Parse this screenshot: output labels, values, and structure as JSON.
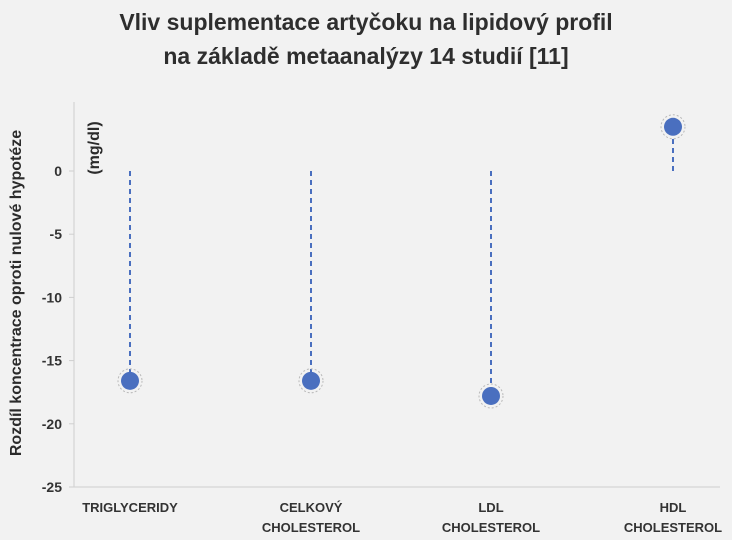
{
  "chart_data": {
    "type": "scatter",
    "title_lines": [
      "Vliv suplementace artyčoku na lipidový profil",
      "na základě metaanalýzy 14 studií [11]"
    ],
    "ylabel": "Rozdíl koncentrace oproti nulové hypotéze",
    "unit": "(mg/dl)",
    "ylim": [
      -25,
      5
    ],
    "yticks": [
      {
        "value": 0,
        "label": "0"
      },
      {
        "value": -5,
        "label": "-5"
      },
      {
        "value": -10,
        "label": "-10"
      },
      {
        "value": -15,
        "label": "-15"
      },
      {
        "value": -20,
        "label": "-20"
      },
      {
        "value": -25,
        "label": "-25"
      }
    ],
    "grid": false,
    "colors": {
      "marker": "#4a6fbf",
      "stem": "#4a6fbf",
      "axis": "#cfcfcf"
    },
    "points": [
      {
        "category_lines": [
          "TRIGLYCERIDY"
        ],
        "value": -16.6
      },
      {
        "category_lines": [
          "CELKOVÝ",
          "CHOLESTEROL"
        ],
        "value": -16.6
      },
      {
        "category_lines": [
          "LDL",
          "CHOLESTEROL"
        ],
        "value": -17.8
      },
      {
        "category_lines": [
          "HDL",
          "CHOLESTEROL"
        ],
        "value": 3.5
      }
    ]
  }
}
